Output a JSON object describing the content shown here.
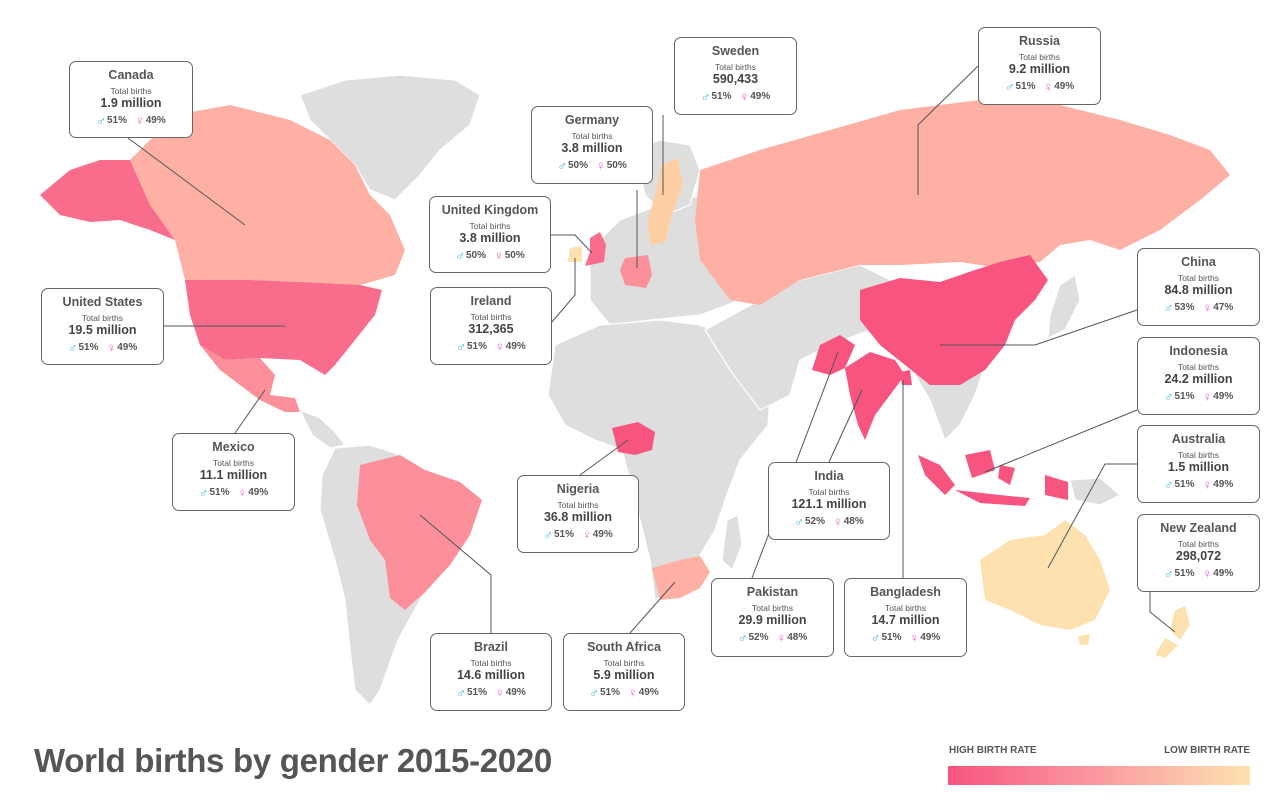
{
  "title": "World births by gender 2015-2020",
  "legend": {
    "high_label": "HIGH BIRTH RATE",
    "low_label": "LOW BIRTH RATE",
    "gradient_colors": [
      "#f7547f",
      "#fb9aa0",
      "#fde2b0"
    ]
  },
  "colors": {
    "male_symbol": "#39b3e8",
    "female_symbol": "#ea66c8",
    "land": "#dedede"
  },
  "countries": [
    {
      "id": "canada",
      "name": "Canada",
      "births_label": "Total births",
      "births": "1.9 million",
      "male": "51%",
      "female": "49%"
    },
    {
      "id": "united-states",
      "name": "United States",
      "births_label": "Total births",
      "births": "19.5 million",
      "male": "51%",
      "female": "49%"
    },
    {
      "id": "mexico",
      "name": "Mexico",
      "births_label": "Total births",
      "births": "11.1 million",
      "male": "51%",
      "female": "49%"
    },
    {
      "id": "brazil",
      "name": "Brazil",
      "births_label": "Total births",
      "births": "14.6 million",
      "male": "51%",
      "female": "49%"
    },
    {
      "id": "united-kingdom",
      "name": "United Kingdom",
      "births_label": "Total births",
      "births": "3.8 million",
      "male": "50%",
      "female": "50%"
    },
    {
      "id": "ireland",
      "name": "Ireland",
      "births_label": "Total births",
      "births": "312,365",
      "male": "51%",
      "female": "49%"
    },
    {
      "id": "germany",
      "name": "Germany",
      "births_label": "Total births",
      "births": "3.8 million",
      "male": "50%",
      "female": "50%"
    },
    {
      "id": "sweden",
      "name": "Sweden",
      "births_label": "Total births",
      "births": "590,433",
      "male": "51%",
      "female": "49%"
    },
    {
      "id": "nigeria",
      "name": "Nigeria",
      "births_label": "Total births",
      "births": "36.8 million",
      "male": "51%",
      "female": "49%"
    },
    {
      "id": "south-africa",
      "name": "South Africa",
      "births_label": "Total births",
      "births": "5.9 million",
      "male": "51%",
      "female": "49%"
    },
    {
      "id": "russia",
      "name": "Russia",
      "births_label": "Total births",
      "births": "9.2 million",
      "male": "51%",
      "female": "49%"
    },
    {
      "id": "india",
      "name": "India",
      "births_label": "Total births",
      "births": "121.1 million",
      "male": "52%",
      "female": "48%"
    },
    {
      "id": "pakistan",
      "name": "Pakistan",
      "births_label": "Total births",
      "births": "29.9 million",
      "male": "52%",
      "female": "48%"
    },
    {
      "id": "bangladesh",
      "name": "Bangladesh",
      "births_label": "Total births",
      "births": "14.7 million",
      "male": "51%",
      "female": "49%"
    },
    {
      "id": "china",
      "name": "China",
      "births_label": "Total births",
      "births": "84.8 million",
      "male": "53%",
      "female": "47%"
    },
    {
      "id": "indonesia",
      "name": "Indonesia",
      "births_label": "Total births",
      "births": "24.2 million",
      "male": "51%",
      "female": "49%"
    },
    {
      "id": "australia",
      "name": "Australia",
      "births_label": "Total births",
      "births": "1.5 million",
      "male": "51%",
      "female": "49%"
    },
    {
      "id": "new-zealand",
      "name": "New Zealand",
      "births_label": "Total births",
      "births": "298,072",
      "male": "51%",
      "female": "49%"
    }
  ]
}
